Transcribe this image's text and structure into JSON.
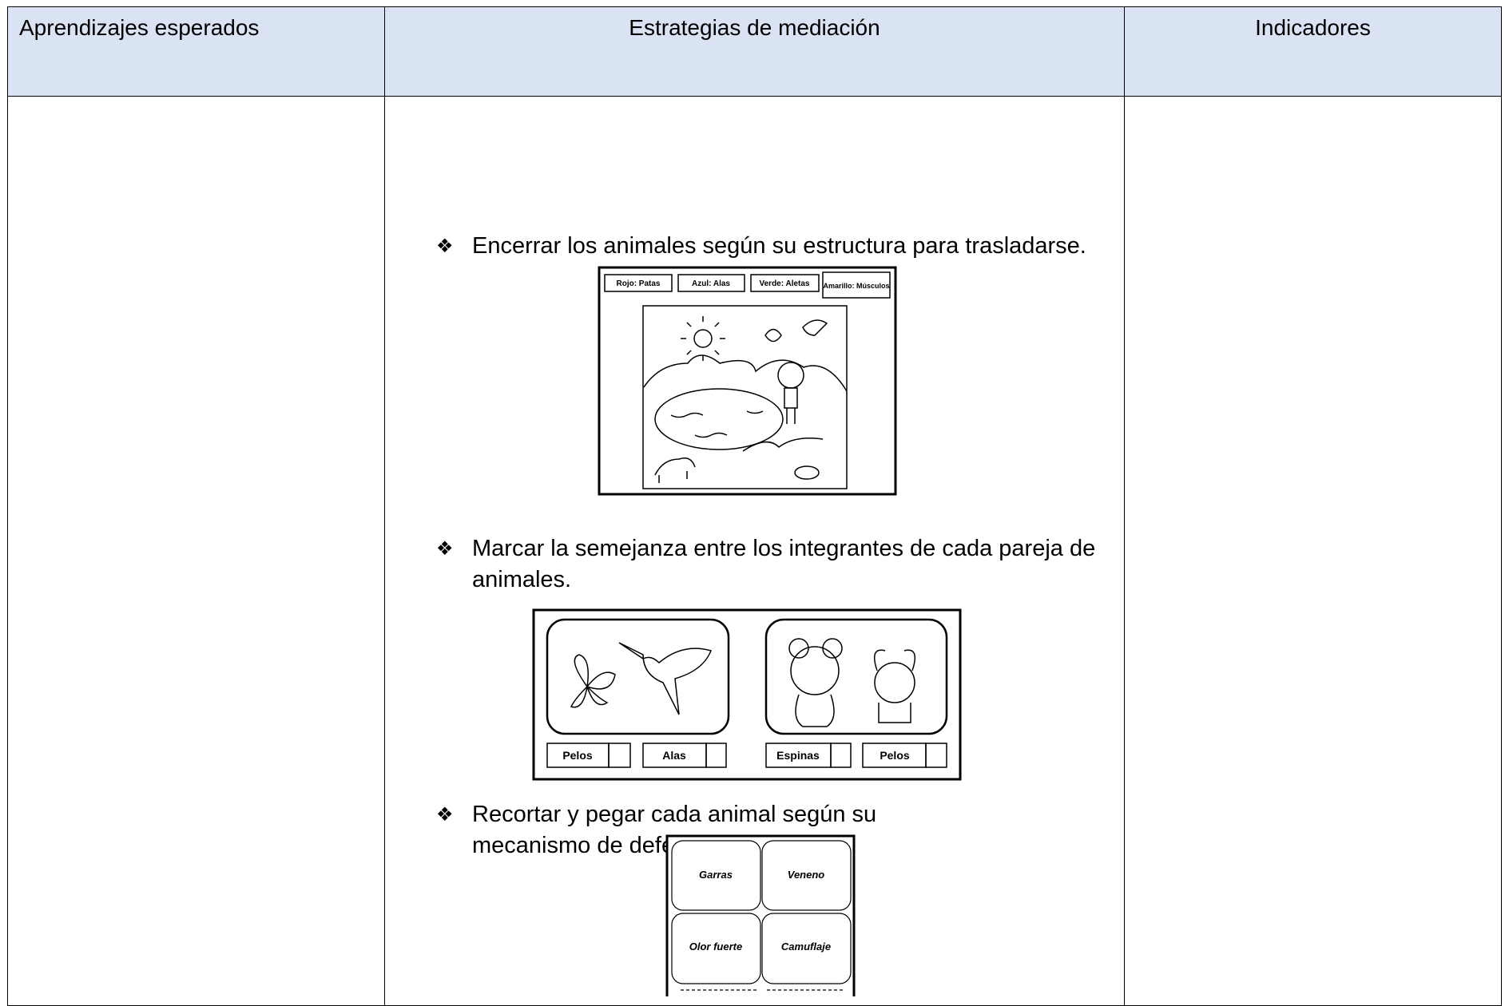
{
  "table": {
    "headers": [
      "Aprendizajes esperados",
      "Estrategias de mediación",
      "Indicadores"
    ],
    "strategies": [
      {
        "text": "Encerrar los animales según su estructura para trasladarse.",
        "figure_labels": [
          "Rojo: Patas",
          "Azul: Alas",
          "Verde: Aletas",
          "Amarillo: Músculos"
        ]
      },
      {
        "text": "Marcar la semejanza entre los integrantes de cada pareja de animales.",
        "figure_labels": [
          "Pelos",
          "Alas",
          "Espinas",
          "Pelos"
        ]
      },
      {
        "text": "Recortar y pegar cada animal según su mecanismo de defensa.",
        "figure_labels": [
          "Garras",
          "Veneno",
          "Olor fuerte",
          "Camuflaje"
        ]
      }
    ]
  }
}
